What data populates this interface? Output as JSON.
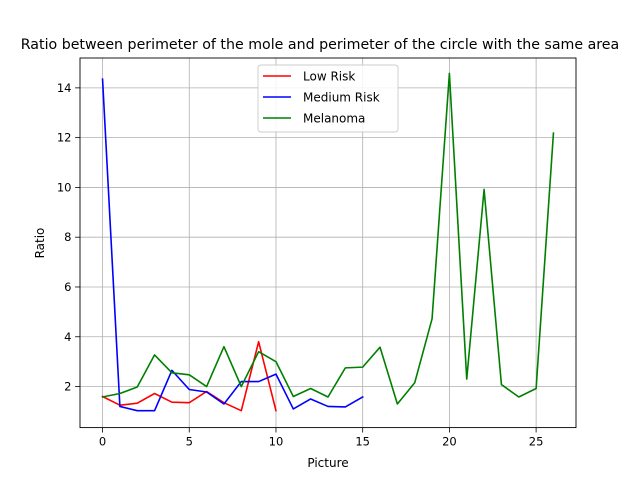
{
  "chart_data": {
    "type": "line",
    "title": "Ratio between perimeter of the mole and perimeter of the circle with the same area",
    "xlabel": "Picture",
    "ylabel": "Ratio",
    "xlim": [
      -1.3,
      27.3
    ],
    "ylim": [
      0.35,
      15.2
    ],
    "xticks": [
      0,
      5,
      10,
      15,
      20,
      25
    ],
    "yticks": [
      2,
      4,
      6,
      8,
      10,
      12,
      14
    ],
    "grid": true,
    "legend_position": "top-center",
    "series": [
      {
        "name": "Low Risk",
        "color": "#ff0000",
        "x": [
          0,
          1,
          2,
          3,
          4,
          5,
          6,
          7,
          8,
          9,
          10
        ],
        "y": [
          1.6,
          1.25,
          1.33,
          1.72,
          1.37,
          1.35,
          1.8,
          1.35,
          1.03,
          3.8,
          1.03
        ]
      },
      {
        "name": "Medium Risk",
        "color": "#0000ff",
        "x": [
          0,
          1,
          2,
          3,
          4,
          5,
          6,
          7,
          8,
          9,
          10,
          11,
          12,
          13,
          14,
          15
        ],
        "y": [
          14.35,
          1.2,
          1.03,
          1.03,
          2.65,
          1.88,
          1.78,
          1.3,
          2.2,
          2.2,
          2.5,
          1.1,
          1.5,
          1.2,
          1.18,
          1.58
        ]
      },
      {
        "name": "Melanoma",
        "color": "#008000",
        "x": [
          0,
          1,
          2,
          3,
          4,
          5,
          6,
          7,
          8,
          9,
          10,
          11,
          12,
          13,
          14,
          15,
          16,
          17,
          18,
          19,
          20,
          21,
          22,
          23,
          24,
          25,
          26
        ],
        "y": [
          1.58,
          1.72,
          1.98,
          3.27,
          2.55,
          2.47,
          2.0,
          3.6,
          2.0,
          3.4,
          3.0,
          1.6,
          1.92,
          1.58,
          2.75,
          2.78,
          3.58,
          1.3,
          2.15,
          4.72,
          14.58,
          2.3,
          9.92,
          2.08,
          1.58,
          1.92,
          12.18
        ]
      }
    ]
  }
}
